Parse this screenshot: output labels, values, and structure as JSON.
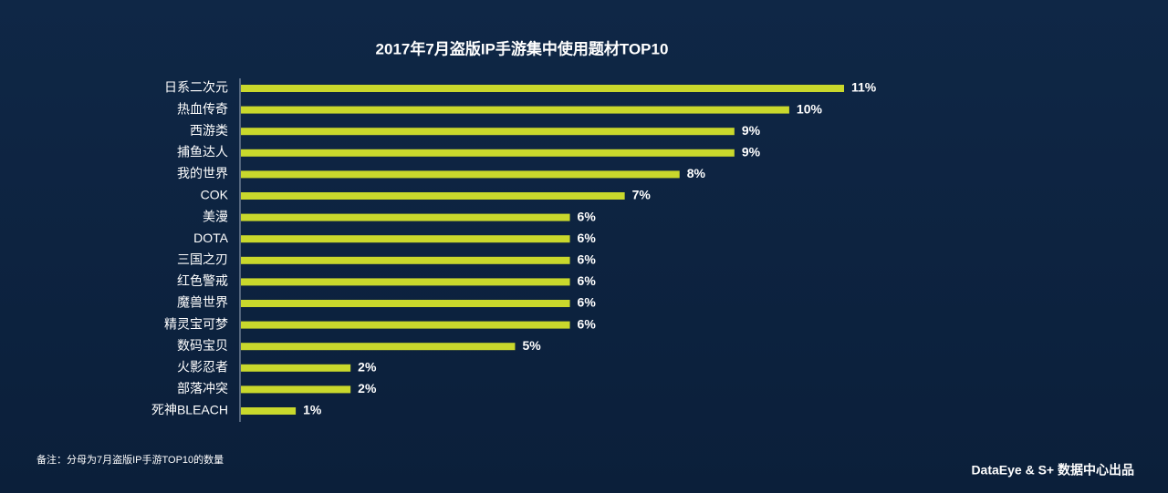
{
  "chart_data": {
    "type": "bar",
    "orientation": "horizontal",
    "title": "2017年7月盗版IP手游集中使用题材TOP10",
    "categories": [
      "日系二次元",
      "热血传奇",
      "西游类",
      "捕鱼达人",
      "我的世界",
      "COK",
      "美漫",
      "DOTA",
      "三国之刃",
      "红色警戒",
      "魔兽世界",
      "精灵宝可梦",
      "数码宝贝",
      "火影忍者",
      "部落冲突",
      "死神BLEACH"
    ],
    "values": [
      11,
      10,
      9,
      9,
      8,
      7,
      6,
      6,
      6,
      6,
      6,
      6,
      5,
      2,
      2,
      1
    ],
    "value_labels": [
      "11%",
      "10%",
      "9%",
      "9%",
      "8%",
      "7%",
      "6%",
      "6%",
      "6%",
      "6%",
      "6%",
      "6%",
      "5%",
      "2%",
      "2%",
      "1%"
    ],
    "color": "#c9d82c",
    "note": "备注：分母为7月盗版IP手游TOP10的数量",
    "source": "DataEye & S+ 数据中心出品"
  }
}
